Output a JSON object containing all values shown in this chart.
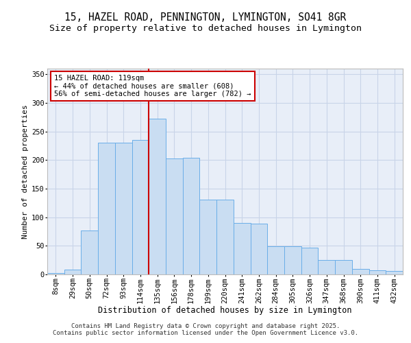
{
  "title_line1": "15, HAZEL ROAD, PENNINGTON, LYMINGTON, SO41 8GR",
  "title_line2": "Size of property relative to detached houses in Lymington",
  "xlabel": "Distribution of detached houses by size in Lymington",
  "ylabel": "Number of detached properties",
  "categories": [
    "8sqm",
    "29sqm",
    "50sqm",
    "72sqm",
    "93sqm",
    "114sqm",
    "135sqm",
    "156sqm",
    "178sqm",
    "199sqm",
    "220sqm",
    "241sqm",
    "262sqm",
    "284sqm",
    "305sqm",
    "326sqm",
    "347sqm",
    "368sqm",
    "390sqm",
    "411sqm",
    "432sqm"
  ],
  "bar_values": [
    2,
    8,
    77,
    230,
    230,
    235,
    273,
    203,
    204,
    131,
    131,
    90,
    89,
    49,
    49,
    47,
    25,
    25,
    10,
    7,
    6
  ],
  "bar_color": "#c9ddf2",
  "bar_edge_color": "#6aaee8",
  "vline_x": 5.5,
  "vline_color": "#cc0000",
  "annotation_text": "15 HAZEL ROAD: 119sqm\n← 44% of detached houses are smaller (608)\n56% of semi-detached houses are larger (782) →",
  "annotation_box_color": "#ffffff",
  "annotation_box_edge": "#cc0000",
  "ylim": [
    0,
    360
  ],
  "yticks": [
    0,
    50,
    100,
    150,
    200,
    250,
    300,
    350
  ],
  "grid_color": "#c8d4e8",
  "bg_color": "#e8eef8",
  "footer": "Contains HM Land Registry data © Crown copyright and database right 2025.\nContains public sector information licensed under the Open Government Licence v3.0.",
  "title_fontsize": 10.5,
  "subtitle_fontsize": 9.5,
  "tick_fontsize": 7.5,
  "xlabel_fontsize": 8.5,
  "ylabel_fontsize": 8,
  "footer_fontsize": 6.5,
  "ann_fontsize": 7.5
}
